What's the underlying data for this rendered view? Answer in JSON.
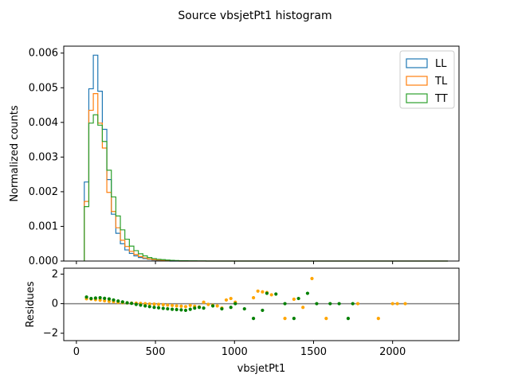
{
  "title": "Source vbsjetPt1 histogram",
  "colors": {
    "LL": "#1f77b4",
    "TL": "#ff7f0e",
    "TT": "#2ca02c",
    "res_TL": "#ffa500",
    "res_TT": "#008000",
    "zero_line": "#808080"
  },
  "chart_data": [
    {
      "type": "line",
      "subtype": "step-histogram",
      "ylabel": "Normalized counts",
      "xlim": [
        -80,
        2420
      ],
      "ylim": [
        0,
        0.0062
      ],
      "xticks": [
        0,
        500,
        1000,
        1500,
        2000
      ],
      "yticks": [
        0.0,
        0.001,
        0.002,
        0.003,
        0.004,
        0.005,
        0.006
      ],
      "ytick_labels": [
        "0.000",
        "0.001",
        "0.002",
        "0.003",
        "0.004",
        "0.005",
        "0.006"
      ],
      "legend": {
        "position": "top-right",
        "entries": [
          "LL",
          "TL",
          "TT"
        ]
      },
      "bin_start": 50,
      "bin_width": 28.5,
      "x_end": 2350,
      "series": [
        {
          "name": "LL",
          "color": "#1f77b4",
          "values": [
            0.00228,
            0.00497,
            0.00594,
            0.0049,
            0.0038,
            0.00235,
            0.00135,
            0.0008,
            0.0005,
            0.00032,
            0.00022,
            0.00015,
            0.0001,
            7e-05,
            5e-05,
            3e-05,
            2e-05,
            1.5e-05,
            1e-05
          ]
        },
        {
          "name": "TL",
          "color": "#ff7f0e",
          "values": [
            0.00172,
            0.00435,
            0.00483,
            0.00398,
            0.00326,
            0.00198,
            0.00143,
            0.00096,
            0.0006,
            0.00042,
            0.00028,
            0.00019,
            0.00013,
            9e-05,
            6e-05,
            4e-05,
            3e-05,
            2e-05,
            1.5e-05,
            1e-05,
            5e-06
          ]
        },
        {
          "name": "TT",
          "color": "#2ca02c",
          "values": [
            0.00157,
            0.00398,
            0.00422,
            0.00392,
            0.00345,
            0.00262,
            0.00185,
            0.0013,
            0.0009,
            0.00063,
            0.00043,
            0.0003,
            0.00021,
            0.00015,
            0.0001,
            7e-05,
            5e-05,
            4e-05,
            3e-05,
            2e-05,
            1.5e-05,
            1e-05,
            8e-06,
            5e-06,
            5e-06,
            4e-06,
            3e-06
          ]
        }
      ]
    },
    {
      "type": "scatter",
      "xlabel": "vbsjetPt1",
      "ylabel": "Residues",
      "xlim": [
        -80,
        2420
      ],
      "ylim": [
        -2.5,
        2.4
      ],
      "xticks": [
        0,
        500,
        1000,
        1500,
        2000
      ],
      "yticks": [
        -2,
        0,
        2
      ],
      "hline": 0,
      "series": [
        {
          "name": "TL",
          "color": "#ffa500",
          "points": [
            [
              64,
              0.33
            ],
            [
              93,
              0.31
            ],
            [
              121,
              0.27
            ],
            [
              150,
              0.24
            ],
            [
              178,
              0.2
            ],
            [
              207,
              0.16
            ],
            [
              235,
              0.13
            ],
            [
              264,
              0.09
            ],
            [
              292,
              0.07
            ],
            [
              321,
              0.05
            ],
            [
              349,
              0.04
            ],
            [
              378,
              0.03
            ],
            [
              406,
              0.02
            ],
            [
              435,
              0.0
            ],
            [
              463,
              -0.02
            ],
            [
              492,
              -0.03
            ],
            [
              520,
              -0.05
            ],
            [
              549,
              -0.07
            ],
            [
              577,
              -0.1
            ],
            [
              606,
              -0.12
            ],
            [
              634,
              -0.15
            ],
            [
              663,
              -0.17
            ],
            [
              691,
              -0.2
            ],
            [
              720,
              -0.12
            ],
            [
              748,
              -0.18
            ],
            [
              777,
              -0.22
            ],
            [
              805,
              0.1
            ],
            [
              834,
              -0.05
            ],
            [
              862,
              -0.1
            ],
            [
              891,
              -0.15
            ],
            [
              920,
              -0.3
            ],
            [
              948,
              0.25
            ],
            [
              977,
              0.35
            ],
            [
              1005,
              0.1
            ],
            [
              1120,
              0.4
            ],
            [
              1148,
              0.85
            ],
            [
              1177,
              0.8
            ],
            [
              1205,
              0.75
            ],
            [
              1234,
              0.6
            ],
            [
              1319,
              -1.0
            ],
            [
              1376,
              0.3
            ],
            [
              1433,
              -0.25
            ],
            [
              1490,
              1.7
            ],
            [
              1580,
              -1.0
            ],
            [
              1780,
              0.0
            ],
            [
              1910,
              -1.0
            ],
            [
              2000,
              0.0
            ],
            [
              2030,
              0.0
            ],
            [
              2080,
              0.0
            ]
          ]
        },
        {
          "name": "TT",
          "color": "#008000",
          "points": [
            [
              64,
              0.45
            ],
            [
              93,
              0.35
            ],
            [
              121,
              0.38
            ],
            [
              150,
              0.4
            ],
            [
              178,
              0.36
            ],
            [
              207,
              0.32
            ],
            [
              235,
              0.25
            ],
            [
              264,
              0.18
            ],
            [
              292,
              0.12
            ],
            [
              321,
              0.06
            ],
            [
              349,
              0.02
            ],
            [
              378,
              -0.05
            ],
            [
              406,
              -0.1
            ],
            [
              435,
              -0.15
            ],
            [
              463,
              -0.2
            ],
            [
              492,
              -0.25
            ],
            [
              520,
              -0.28
            ],
            [
              549,
              -0.32
            ],
            [
              577,
              -0.35
            ],
            [
              606,
              -0.38
            ],
            [
              634,
              -0.4
            ],
            [
              663,
              -0.42
            ],
            [
              691,
              -0.45
            ],
            [
              720,
              -0.38
            ],
            [
              748,
              -0.3
            ],
            [
              777,
              -0.25
            ],
            [
              805,
              -0.3
            ],
            [
              863,
              -0.15
            ],
            [
              920,
              -0.35
            ],
            [
              977,
              -0.25
            ],
            [
              1005,
              0.0
            ],
            [
              1063,
              -0.35
            ],
            [
              1120,
              -1.0
            ],
            [
              1177,
              -0.45
            ],
            [
              1205,
              0.7
            ],
            [
              1262,
              0.65
            ],
            [
              1319,
              0.0
            ],
            [
              1376,
              -1.0
            ],
            [
              1405,
              0.35
            ],
            [
              1462,
              0.7
            ],
            [
              1520,
              0.0
            ],
            [
              1605,
              0.0
            ],
            [
              1662,
              0.0
            ],
            [
              1719,
              -1.0
            ],
            [
              1748,
              0.0
            ]
          ]
        }
      ]
    }
  ]
}
